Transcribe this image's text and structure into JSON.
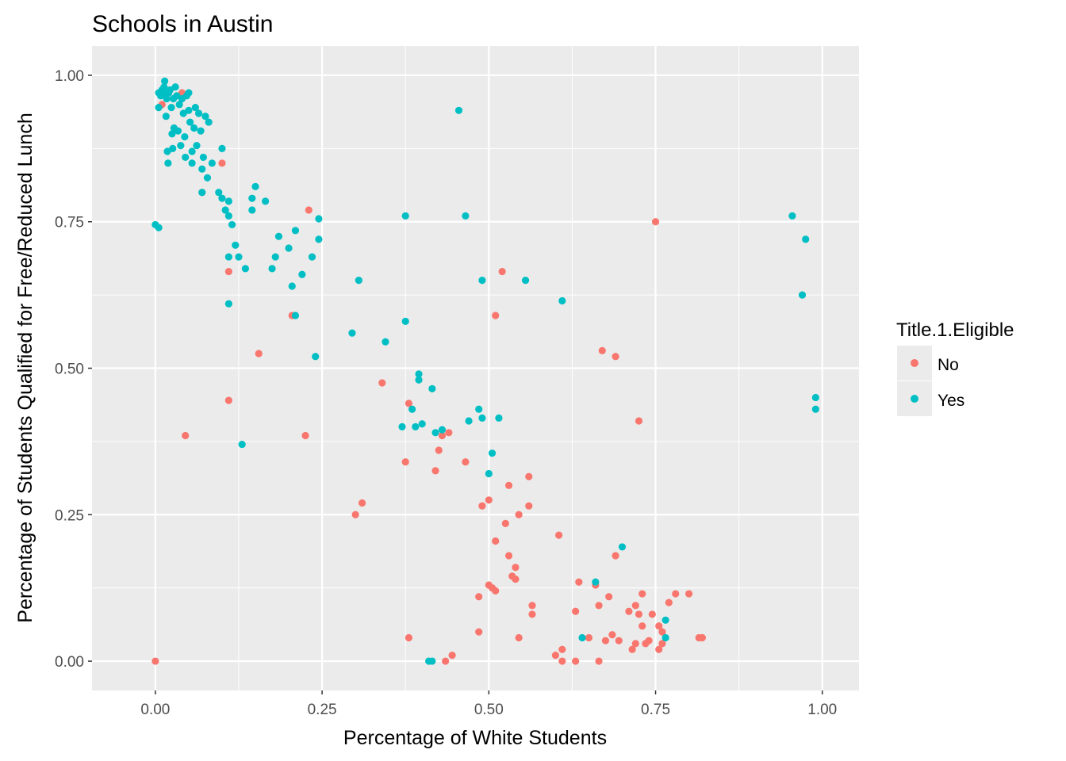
{
  "chart_data": {
    "type": "scatter",
    "title": "Schools in Austin",
    "xlabel": "Percentage of White Students",
    "ylabel": "Percentage of Students Qualified for Free/Reduced Lunch",
    "xlim": [
      -0.095,
      1.055
    ],
    "ylim": [
      -0.05,
      1.05
    ],
    "x_ticks": [
      "0.00",
      "0.25",
      "0.50",
      "0.75",
      "1.00"
    ],
    "y_ticks": [
      "0.00",
      "0.25",
      "0.50",
      "0.75",
      "1.00"
    ],
    "grid": true,
    "legend": {
      "title": "Title.1.Eligible",
      "position": "right",
      "entries": [
        {
          "label": "No",
          "color": "#F8766D"
        },
        {
          "label": "Yes",
          "color": "#00BFC4"
        }
      ]
    },
    "series": [
      {
        "name": "No",
        "color": "#F8766D",
        "points": [
          [
            0.0,
            0.0
          ],
          [
            0.01,
            0.95
          ],
          [
            0.04,
            0.97
          ],
          [
            0.045,
            0.385
          ],
          [
            0.07,
            0.8
          ],
          [
            0.1,
            0.85
          ],
          [
            0.11,
            0.665
          ],
          [
            0.11,
            0.445
          ],
          [
            0.155,
            0.525
          ],
          [
            0.205,
            0.59
          ],
          [
            0.225,
            0.385
          ],
          [
            0.23,
            0.77
          ],
          [
            0.3,
            0.25
          ],
          [
            0.31,
            0.27
          ],
          [
            0.34,
            0.475
          ],
          [
            0.375,
            0.34
          ],
          [
            0.38,
            0.04
          ],
          [
            0.38,
            0.44
          ],
          [
            0.42,
            0.325
          ],
          [
            0.425,
            0.36
          ],
          [
            0.43,
            0.385
          ],
          [
            0.435,
            0.0
          ],
          [
            0.44,
            0.39
          ],
          [
            0.445,
            0.01
          ],
          [
            0.465,
            0.34
          ],
          [
            0.485,
            0.11
          ],
          [
            0.485,
            0.05
          ],
          [
            0.49,
            0.265
          ],
          [
            0.5,
            0.275
          ],
          [
            0.5,
            0.13
          ],
          [
            0.505,
            0.125
          ],
          [
            0.51,
            0.59
          ],
          [
            0.51,
            0.205
          ],
          [
            0.51,
            0.12
          ],
          [
            0.52,
            0.665
          ],
          [
            0.525,
            0.235
          ],
          [
            0.53,
            0.18
          ],
          [
            0.53,
            0.3
          ],
          [
            0.535,
            0.145
          ],
          [
            0.54,
            0.14
          ],
          [
            0.54,
            0.16
          ],
          [
            0.545,
            0.04
          ],
          [
            0.545,
            0.25
          ],
          [
            0.56,
            0.315
          ],
          [
            0.56,
            0.265
          ],
          [
            0.565,
            0.095
          ],
          [
            0.565,
            0.08
          ],
          [
            0.6,
            0.01
          ],
          [
            0.605,
            0.215
          ],
          [
            0.61,
            0.0
          ],
          [
            0.61,
            0.02
          ],
          [
            0.63,
            0.0
          ],
          [
            0.63,
            0.085
          ],
          [
            0.635,
            0.135
          ],
          [
            0.65,
            0.04
          ],
          [
            0.66,
            0.13
          ],
          [
            0.665,
            0.095
          ],
          [
            0.665,
            0.0
          ],
          [
            0.67,
            0.53
          ],
          [
            0.675,
            0.035
          ],
          [
            0.68,
            0.11
          ],
          [
            0.685,
            0.045
          ],
          [
            0.69,
            0.18
          ],
          [
            0.69,
            0.52
          ],
          [
            0.695,
            0.035
          ],
          [
            0.71,
            0.085
          ],
          [
            0.715,
            0.02
          ],
          [
            0.72,
            0.095
          ],
          [
            0.72,
            0.03
          ],
          [
            0.725,
            0.08
          ],
          [
            0.725,
            0.41
          ],
          [
            0.73,
            0.06
          ],
          [
            0.73,
            0.115
          ],
          [
            0.735,
            0.03
          ],
          [
            0.74,
            0.035
          ],
          [
            0.745,
            0.08
          ],
          [
            0.75,
            0.75
          ],
          [
            0.755,
            0.02
          ],
          [
            0.755,
            0.06
          ],
          [
            0.76,
            0.05
          ],
          [
            0.76,
            0.03
          ],
          [
            0.77,
            0.1
          ],
          [
            0.78,
            0.115
          ],
          [
            0.8,
            0.115
          ],
          [
            0.815,
            0.04
          ],
          [
            0.82,
            0.04
          ]
        ]
      },
      {
        "name": "Yes",
        "color": "#00BFC4",
        "points": [
          [
            0.0,
            0.745
          ],
          [
            0.005,
            0.74
          ],
          [
            0.005,
            0.945
          ],
          [
            0.005,
            0.97
          ],
          [
            0.008,
            0.965
          ],
          [
            0.01,
            0.975
          ],
          [
            0.012,
            0.97
          ],
          [
            0.013,
            0.98
          ],
          [
            0.014,
            0.99
          ],
          [
            0.015,
            0.965
          ],
          [
            0.016,
            0.93
          ],
          [
            0.017,
            0.96
          ],
          [
            0.018,
            0.87
          ],
          [
            0.019,
            0.85
          ],
          [
            0.02,
            0.97
          ],
          [
            0.022,
            0.975
          ],
          [
            0.024,
            0.945
          ],
          [
            0.025,
            0.9
          ],
          [
            0.026,
            0.875
          ],
          [
            0.027,
            0.96
          ],
          [
            0.028,
            0.91
          ],
          [
            0.03,
            0.98
          ],
          [
            0.032,
            0.965
          ],
          [
            0.034,
            0.905
          ],
          [
            0.036,
            0.95
          ],
          [
            0.038,
            0.88
          ],
          [
            0.04,
            0.96
          ],
          [
            0.042,
            0.935
          ],
          [
            0.044,
            0.895
          ],
          [
            0.045,
            0.86
          ],
          [
            0.047,
            0.965
          ],
          [
            0.05,
            0.97
          ],
          [
            0.05,
            0.94
          ],
          [
            0.052,
            0.92
          ],
          [
            0.055,
            0.87
          ],
          [
            0.055,
            0.85
          ],
          [
            0.058,
            0.91
          ],
          [
            0.06,
            0.945
          ],
          [
            0.062,
            0.88
          ],
          [
            0.065,
            0.935
          ],
          [
            0.068,
            0.905
          ],
          [
            0.07,
            0.8
          ],
          [
            0.07,
            0.84
          ],
          [
            0.072,
            0.86
          ],
          [
            0.075,
            0.93
          ],
          [
            0.078,
            0.825
          ],
          [
            0.08,
            0.92
          ],
          [
            0.085,
            0.85
          ],
          [
            0.095,
            0.8
          ],
          [
            0.1,
            0.875
          ],
          [
            0.1,
            0.79
          ],
          [
            0.105,
            0.77
          ],
          [
            0.11,
            0.785
          ],
          [
            0.11,
            0.76
          ],
          [
            0.11,
            0.69
          ],
          [
            0.11,
            0.61
          ],
          [
            0.115,
            0.745
          ],
          [
            0.12,
            0.71
          ],
          [
            0.125,
            0.69
          ],
          [
            0.13,
            0.37
          ],
          [
            0.135,
            0.67
          ],
          [
            0.145,
            0.79
          ],
          [
            0.145,
            0.77
          ],
          [
            0.15,
            0.81
          ],
          [
            0.165,
            0.785
          ],
          [
            0.175,
            0.67
          ],
          [
            0.18,
            0.69
          ],
          [
            0.185,
            0.725
          ],
          [
            0.2,
            0.705
          ],
          [
            0.205,
            0.64
          ],
          [
            0.21,
            0.735
          ],
          [
            0.21,
            0.59
          ],
          [
            0.22,
            0.66
          ],
          [
            0.235,
            0.69
          ],
          [
            0.24,
            0.52
          ],
          [
            0.245,
            0.755
          ],
          [
            0.245,
            0.72
          ],
          [
            0.295,
            0.56
          ],
          [
            0.305,
            0.65
          ],
          [
            0.345,
            0.545
          ],
          [
            0.37,
            0.4
          ],
          [
            0.375,
            0.76
          ],
          [
            0.375,
            0.58
          ],
          [
            0.385,
            0.43
          ],
          [
            0.39,
            0.4
          ],
          [
            0.395,
            0.49
          ],
          [
            0.395,
            0.48
          ],
          [
            0.4,
            0.405
          ],
          [
            0.41,
            0.0
          ],
          [
            0.415,
            0.0
          ],
          [
            0.415,
            0.465
          ],
          [
            0.42,
            0.39
          ],
          [
            0.43,
            0.395
          ],
          [
            0.455,
            0.94
          ],
          [
            0.465,
            0.76
          ],
          [
            0.47,
            0.41
          ],
          [
            0.485,
            0.43
          ],
          [
            0.49,
            0.415
          ],
          [
            0.49,
            0.65
          ],
          [
            0.5,
            0.32
          ],
          [
            0.505,
            0.355
          ],
          [
            0.515,
            0.415
          ],
          [
            0.555,
            0.65
          ],
          [
            0.61,
            0.615
          ],
          [
            0.64,
            0.04
          ],
          [
            0.66,
            0.135
          ],
          [
            0.7,
            0.195
          ],
          [
            0.765,
            0.07
          ],
          [
            0.765,
            0.04
          ],
          [
            0.955,
            0.76
          ],
          [
            0.97,
            0.625
          ],
          [
            0.975,
            0.72
          ],
          [
            0.99,
            0.45
          ],
          [
            0.99,
            0.43
          ]
        ]
      }
    ]
  }
}
